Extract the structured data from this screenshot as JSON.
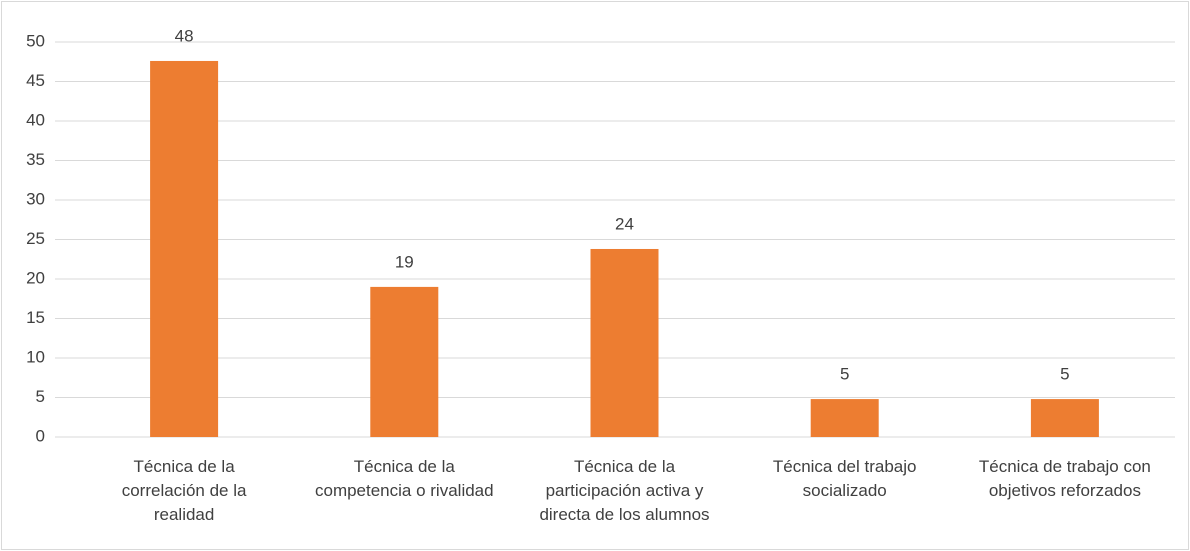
{
  "chart_data": {
    "type": "bar",
    "categories": [
      "Técnica de la correlación de la realidad",
      "Técnica de la competencia o rivalidad",
      "Técnica de la participación activa y directa de los alumnos",
      "Técnica del trabajo socializado",
      "Técnica de trabajo con objetivos reforzados"
    ],
    "values": [
      47.6,
      19,
      23.8,
      4.8,
      4.8
    ],
    "value_labels": [
      "48",
      "19",
      "24",
      "5",
      "5"
    ],
    "color": "#ed7d31",
    "ylim": [
      0,
      50
    ],
    "yticks": [
      0,
      5,
      10,
      15,
      20,
      25,
      30,
      35,
      40,
      45,
      50
    ],
    "grid": true
  }
}
